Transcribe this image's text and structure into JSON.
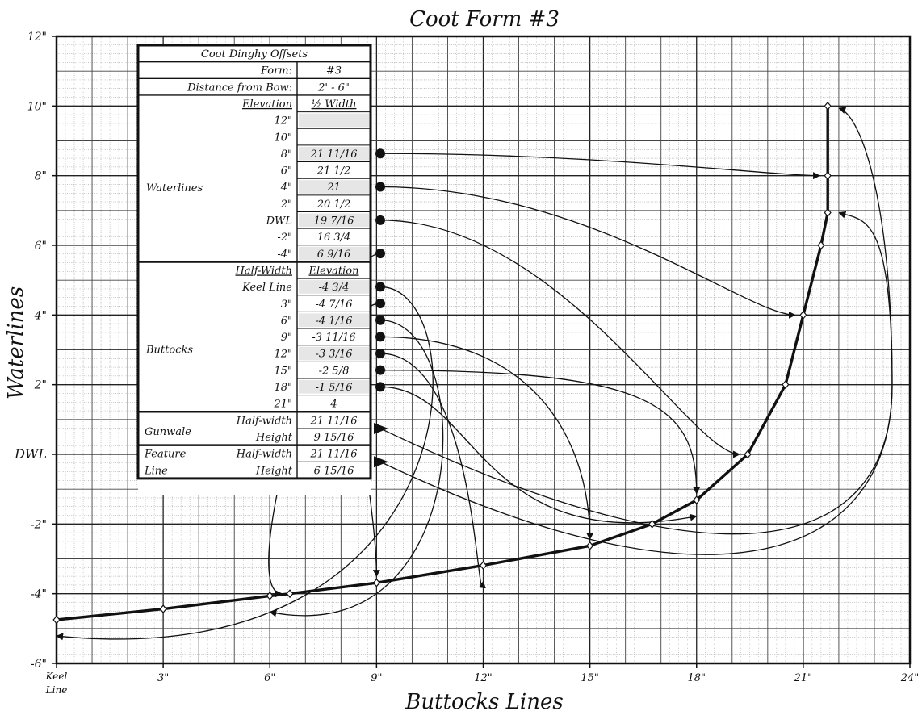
{
  "chart_data": {
    "type": "line",
    "title": "Coot Form #3",
    "xlabel": "Buttocks Lines",
    "ylabel": "Waterlines",
    "xlim": [
      0,
      24
    ],
    "ylim": [
      -6,
      12
    ],
    "grid": true,
    "x_ticks": [
      {
        "value": 0,
        "label": "Keel Line"
      },
      {
        "value": 3,
        "label": "3\""
      },
      {
        "value": 6,
        "label": "6\""
      },
      {
        "value": 9,
        "label": "9\""
      },
      {
        "value": 12,
        "label": "12\""
      },
      {
        "value": 15,
        "label": "15\""
      },
      {
        "value": 18,
        "label": "18\""
      },
      {
        "value": 21,
        "label": "21\""
      },
      {
        "value": 24,
        "label": "24\""
      }
    ],
    "y_ticks": [
      {
        "value": -6,
        "label": "-6\""
      },
      {
        "value": -4,
        "label": "-4\""
      },
      {
        "value": -2,
        "label": "-2\""
      },
      {
        "value": 0,
        "label": "DWL"
      },
      {
        "value": 2,
        "label": "2\""
      },
      {
        "value": 4,
        "label": "4\""
      },
      {
        "value": 6,
        "label": "6\""
      },
      {
        "value": 8,
        "label": "8\""
      },
      {
        "value": 10,
        "label": "10\""
      },
      {
        "value": 12,
        "label": "12\""
      }
    ],
    "series": [
      {
        "points": [
          {
            "x": 0,
            "y": -4.75
          },
          {
            "x": 3,
            "y": -4.4375
          },
          {
            "x": 6,
            "y": -4.0625
          },
          {
            "x": 6.5625,
            "y": -4
          },
          {
            "x": 9,
            "y": -3.6875
          },
          {
            "x": 12,
            "y": -3.1875
          },
          {
            "x": 15,
            "y": -2.625
          },
          {
            "x": 16.75,
            "y": -2
          },
          {
            "x": 18,
            "y": -1.3125
          },
          {
            "x": 19.4375,
            "y": 0
          },
          {
            "x": 20.5,
            "y": 2
          },
          {
            "x": 21,
            "y": 4
          },
          {
            "x": 21.5,
            "y": 6
          },
          {
            "x": 21.6875,
            "y": 6.9375
          },
          {
            "x": 21.6875,
            "y": 8
          },
          {
            "x": 21.6875,
            "y": 10
          }
        ]
      }
    ],
    "table": {
      "title": "Coot Dinghy Offsets",
      "form_label": "Form:",
      "form_value": "#3",
      "distance_label": "Distance from Bow:",
      "distance_value": "2' - 6\"",
      "waterlines_header": [
        "Elevation",
        "½ Width"
      ],
      "waterlines_group": "Waterlines",
      "waterlines": [
        {
          "elev": "12\"",
          "value": ""
        },
        {
          "elev": "10\"",
          "value": ""
        },
        {
          "elev": "8\"",
          "value": "21 11/16"
        },
        {
          "elev": "6\"",
          "value": "21 1/2"
        },
        {
          "elev": "4\"",
          "value": "21"
        },
        {
          "elev": "2\"",
          "value": "20 1/2"
        },
        {
          "elev": "DWL",
          "value": "19 7/16"
        },
        {
          "elev": "-2\"",
          "value": "16 3/4"
        },
        {
          "elev": "-4\"",
          "value": "6 9/16"
        }
      ],
      "buttocks_header": [
        "Half-Width",
        "Elevation"
      ],
      "buttocks_group": "Buttocks",
      "buttocks": [
        {
          "hw": "Keel Line",
          "value": "-4 3/4"
        },
        {
          "hw": "3\"",
          "value": "-4 7/16"
        },
        {
          "hw": "6\"",
          "value": "-4 1/16"
        },
        {
          "hw": "9\"",
          "value": "-3 11/16"
        },
        {
          "hw": "12\"",
          "value": "-3 3/16"
        },
        {
          "hw": "15\"",
          "value": "-2 5/8"
        },
        {
          "hw": "18\"",
          "value": "-1 5/16"
        },
        {
          "hw": "21\"",
          "value": "4"
        }
      ],
      "gunwale": {
        "group": "Gunwale",
        "hw_label": "Half-width",
        "hw_value": "21 11/16",
        "h_label": "Height",
        "h_value": "9 15/16"
      },
      "feature": {
        "group1": "Feature",
        "group2": "Line",
        "hw_label": "Half-width",
        "hw_value": "21 11/16",
        "h_label": "Height",
        "h_value": "6 15/16"
      }
    }
  }
}
